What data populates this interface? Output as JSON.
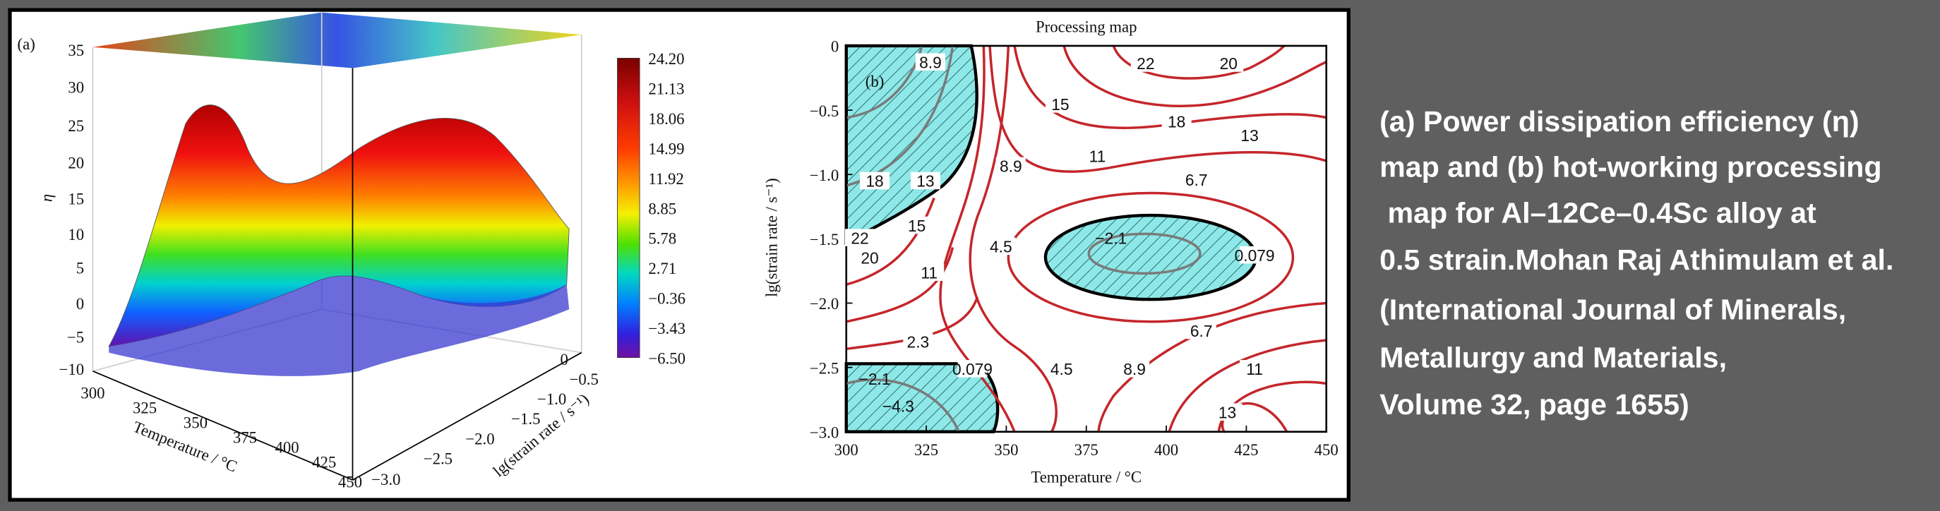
{
  "panel_a": {
    "label": "(a)",
    "z_axis_label": "η",
    "z_ticks": [
      "35",
      "30",
      "25",
      "20",
      "15",
      "10",
      "5",
      "0",
      "−5",
      "−10"
    ],
    "x_axis_label": "Temperature / °C",
    "x_ticks": [
      "300",
      "325",
      "350",
      "375",
      "400",
      "425",
      "450"
    ],
    "y_axis_label": "lg(strain rate / s⁻¹)",
    "y_ticks": [
      "0",
      "−0.5",
      "−1.0",
      "−1.5",
      "−2.0",
      "−2.5",
      "−3.0"
    ],
    "colorbar_ticks": [
      "24.20",
      "21.13",
      "18.06",
      "14.99",
      "11.92",
      "8.85",
      "5.78",
      "2.71",
      "−0.36",
      "−3.43",
      "−6.50"
    ]
  },
  "panel_b": {
    "title": "Processing map",
    "label": "(b)",
    "x_axis_label": "Temperature / °C",
    "x_ticks": [
      "300",
      "325",
      "350",
      "375",
      "400",
      "425",
      "450"
    ],
    "y_axis_label": "lg(strain rate / s⁻¹)",
    "y_ticks": [
      "0",
      "−0.5",
      "−1.0",
      "−1.5",
      "−2.0",
      "−2.5",
      "−3.0"
    ],
    "contour_labels": [
      "8.9",
      "22",
      "20",
      "15",
      "18",
      "13",
      "11",
      "8.9",
      "6.7",
      "18",
      "13",
      "15",
      "22",
      "20",
      "11",
      "4.5",
      "−2.1",
      "0.079",
      "2.3",
      "0.079",
      "4.5",
      "8.9",
      "6.7",
      "11",
      "−2.1",
      "−4.3",
      "13"
    ]
  },
  "caption": {
    "lines": [
      "(a) Power dissipation efficiency (η)",
      "map and (b) hot-working processing",
      " map for Al–12Ce–0.4Sc alloy at",
      "0.5 strain.Mohan Raj Athimulam et al.",
      "(International Journal of Minerals,",
      "Metallurgy and Materials,",
      "Volume 32, page 1655)"
    ]
  }
}
